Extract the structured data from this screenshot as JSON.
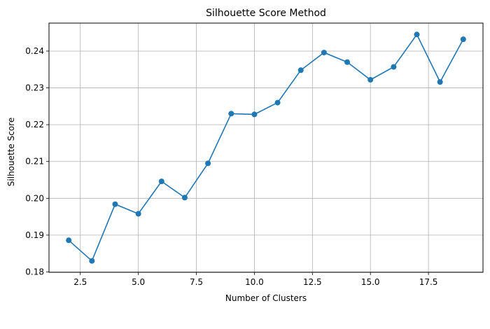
{
  "chart_data": {
    "type": "line",
    "title": "Silhouette Score Method",
    "xlabel": "Number of Clusters",
    "ylabel": "Silhouette Score",
    "x": [
      2,
      3,
      4,
      5,
      6,
      7,
      8,
      9,
      10,
      11,
      12,
      13,
      14,
      15,
      16,
      17,
      18,
      19
    ],
    "series": [
      {
        "values": [
          0.1886,
          0.183,
          0.1984,
          0.1958,
          0.2046,
          0.2002,
          0.2095,
          0.223,
          0.2228,
          0.226,
          0.2348,
          0.2396,
          0.237,
          0.2322,
          0.2357,
          0.2445,
          0.2316,
          0.2432
        ],
        "color": "#1f77b4",
        "marker": "circle"
      }
    ],
    "xlim": [
      1.15,
      19.85
    ],
    "ylim": [
      0.1799,
      0.2476
    ],
    "xticks": [
      "2.5",
      "5.0",
      "7.5",
      "10.0",
      "12.5",
      "15.0",
      "17.5"
    ],
    "yticks": [
      "0.18",
      "0.19",
      "0.20",
      "0.21",
      "0.22",
      "0.23",
      "0.24"
    ],
    "grid": true,
    "legend": "none"
  }
}
